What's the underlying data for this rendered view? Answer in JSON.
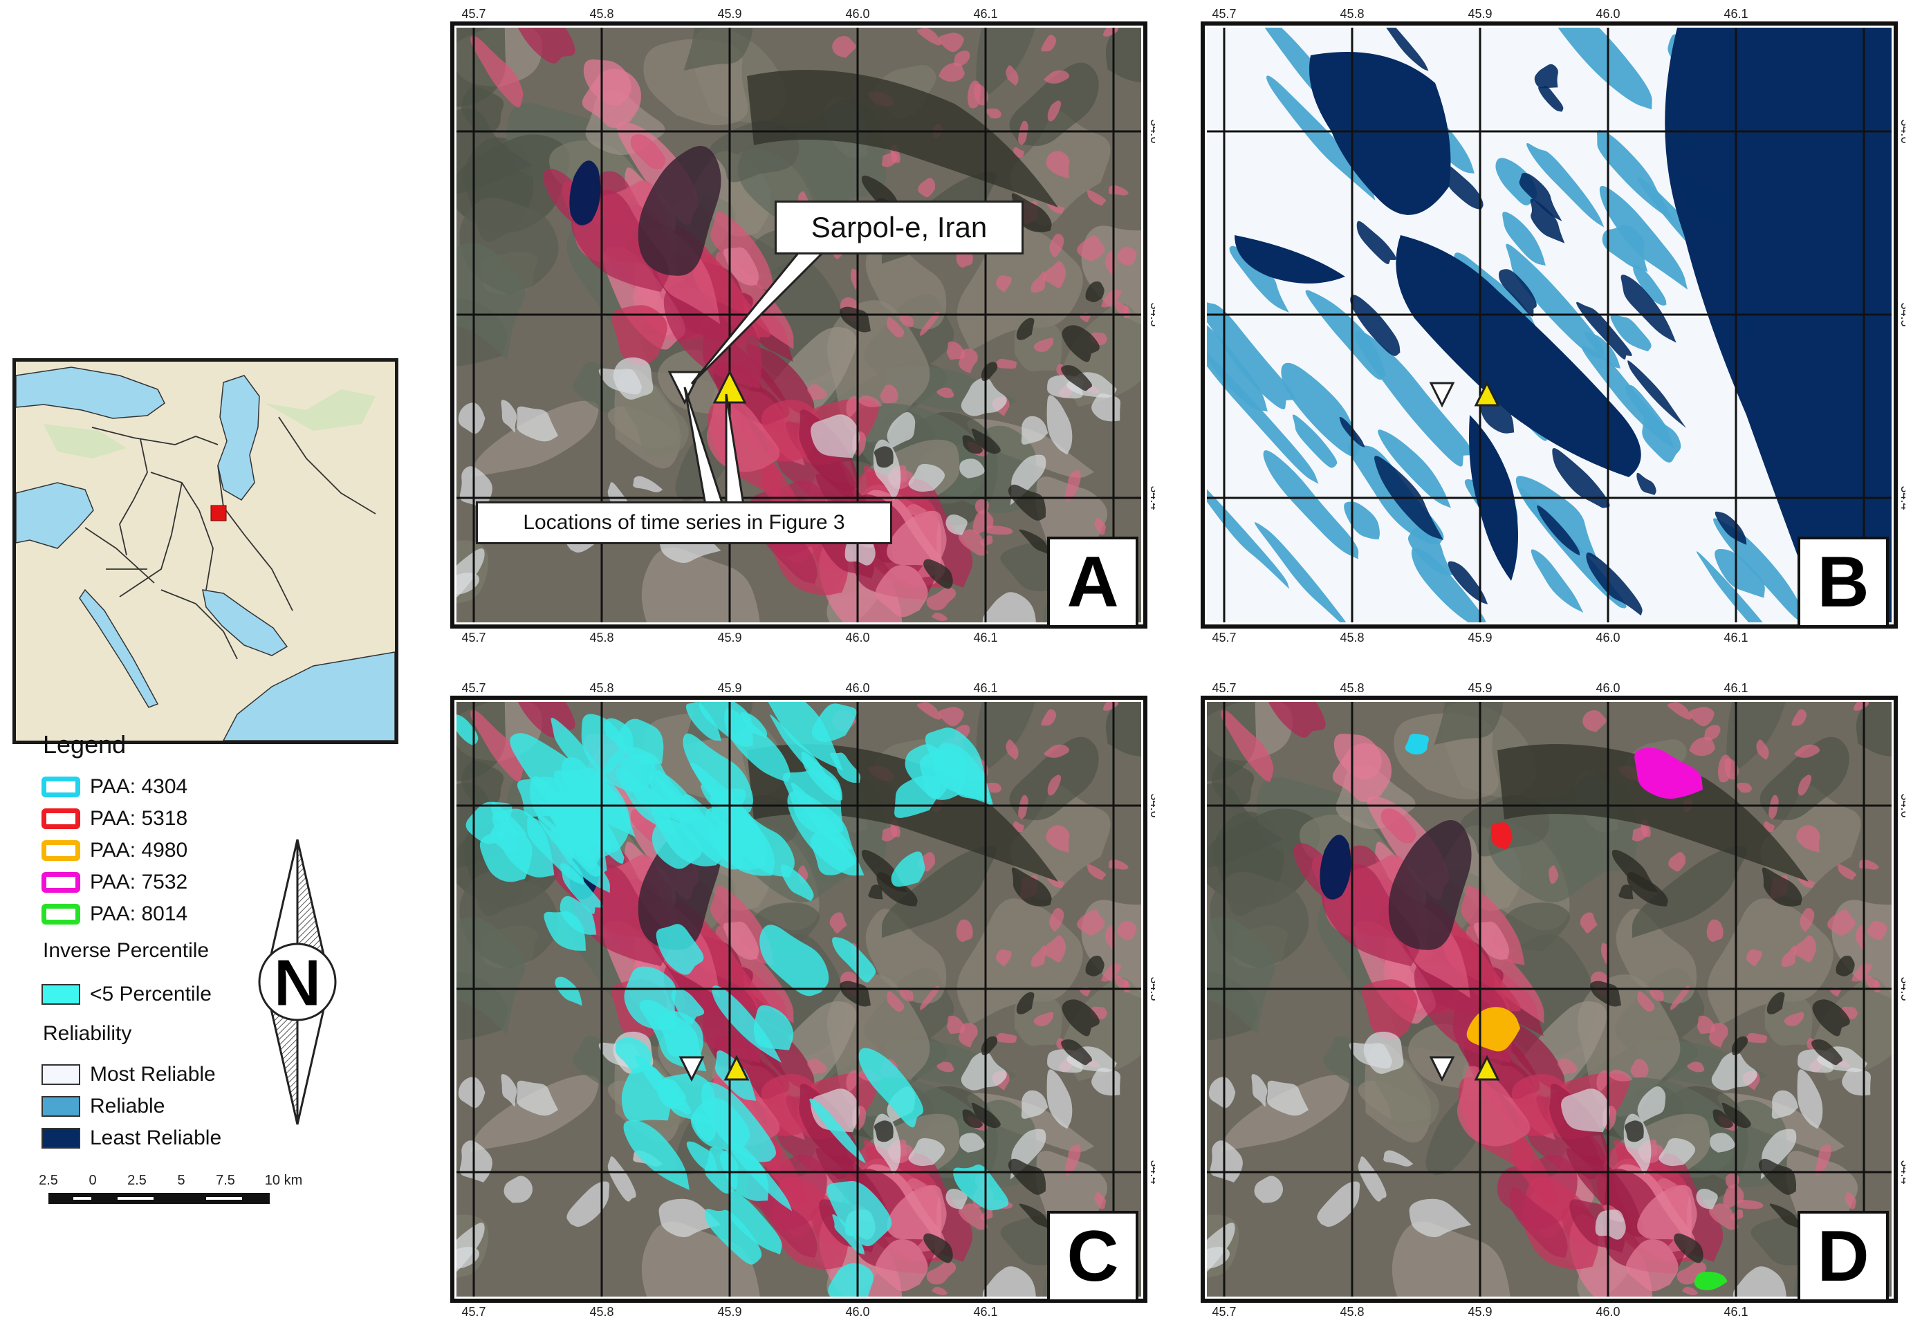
{
  "panels": {
    "A": {
      "letter": "A"
    },
    "B": {
      "letter": "B"
    },
    "C": {
      "letter": "C"
    },
    "D": {
      "letter": "D"
    }
  },
  "lon_ticks": [
    "45.7",
    "45.8",
    "45.9",
    "46.0",
    "46.1"
  ],
  "lat_ticks": [
    "34.6",
    "34.5",
    "34.4"
  ],
  "annotations": {
    "city_label": "Sarpol-e, Iran",
    "time_series_label": "Locations of time series in Figure 3"
  },
  "legend": {
    "title": "Legend",
    "paa": [
      {
        "label": "PAA: 4304",
        "color": "#22d3ee"
      },
      {
        "label": "PAA: 5318",
        "color": "#ef1c24"
      },
      {
        "label": "PAA: 4980",
        "color": "#f8b400"
      },
      {
        "label": "PAA: 7532",
        "color": "#f20ed6"
      },
      {
        "label": "PAA: 8014",
        "color": "#26e226"
      }
    ],
    "inverse_percentile_title": "Inverse Percentile",
    "inverse_percentile_item": {
      "label": "<5 Percentile",
      "color": "#3ff5ef"
    },
    "reliability_title": "Reliability",
    "reliability": [
      {
        "label": "Most Reliable",
        "color": "#f4f8fc"
      },
      {
        "label": "Reliable",
        "color": "#4aa6d1"
      },
      {
        "label": "Least Reliable",
        "color": "#062b63"
      }
    ]
  },
  "north_arrow": {
    "letter": "N"
  },
  "scale_bar": {
    "labels": [
      "2.5",
      "0",
      "2.5",
      "5",
      "7.5",
      "10 km"
    ]
  },
  "colors": {
    "imagery_base": "#6e6a60",
    "veg_red": "#c8365e",
    "water": "#0b1e55",
    "cyan_overlay": "#39e9e6",
    "rel_white": "#f4f8fc",
    "rel_mid": "#4aa6d1",
    "rel_dark": "#062b63",
    "marker_yellow": "#f4e400"
  }
}
